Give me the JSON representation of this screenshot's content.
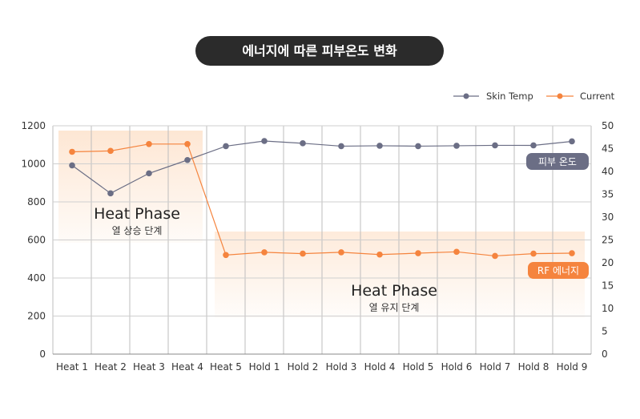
{
  "title": "에너지에 따른 피부온도 변화",
  "chart_data": {
    "type": "line",
    "categories": [
      "Heat 1",
      "Heat 2",
      "Heat 3",
      "Heat 4",
      "Heat 5",
      "Hold 1",
      "Hold 2",
      "Hold 3",
      "Hold 4",
      "Hold 5",
      "Hold 6",
      "Hold 7",
      "Hold 8",
      "Hold 9"
    ],
    "left_axis": {
      "min": 0,
      "max": 1200,
      "ticks": [
        0,
        200,
        400,
        600,
        800,
        1000,
        1200
      ]
    },
    "right_axis": {
      "min": 0,
      "max": 50,
      "ticks": [
        0,
        5,
        10,
        15,
        20,
        25,
        30,
        35,
        40,
        45,
        50
      ]
    },
    "series": [
      {
        "name": "Skin Temp",
        "axis": "left",
        "color": "#6b6e85",
        "values": [
          992,
          845,
          950,
          1020,
          1093,
          1120,
          1108,
          1093,
          1095,
          1093,
          1095,
          1097,
          1097,
          1118
        ]
      },
      {
        "name": "Current",
        "axis": "right",
        "color": "#f5843e",
        "values": [
          44.3,
          44.5,
          46.0,
          46.0,
          21.7,
          22.3,
          22.0,
          22.3,
          21.8,
          22.1,
          22.4,
          21.5,
          22.0,
          22.1
        ]
      }
    ],
    "legend": {
      "position": "top-right",
      "items": [
        "Skin Temp",
        "Current"
      ]
    },
    "grid": true
  },
  "regions": [
    {
      "title": "Heat Phase",
      "subtitle": "열 상승 단계"
    },
    {
      "title": "Heat Phase",
      "subtitle": "열 유지 단계"
    }
  ],
  "badges": {
    "skin": {
      "label": "피부 온도",
      "color": "#6b6e85"
    },
    "current": {
      "label": "RF 에너지",
      "color": "#f5843e"
    }
  }
}
